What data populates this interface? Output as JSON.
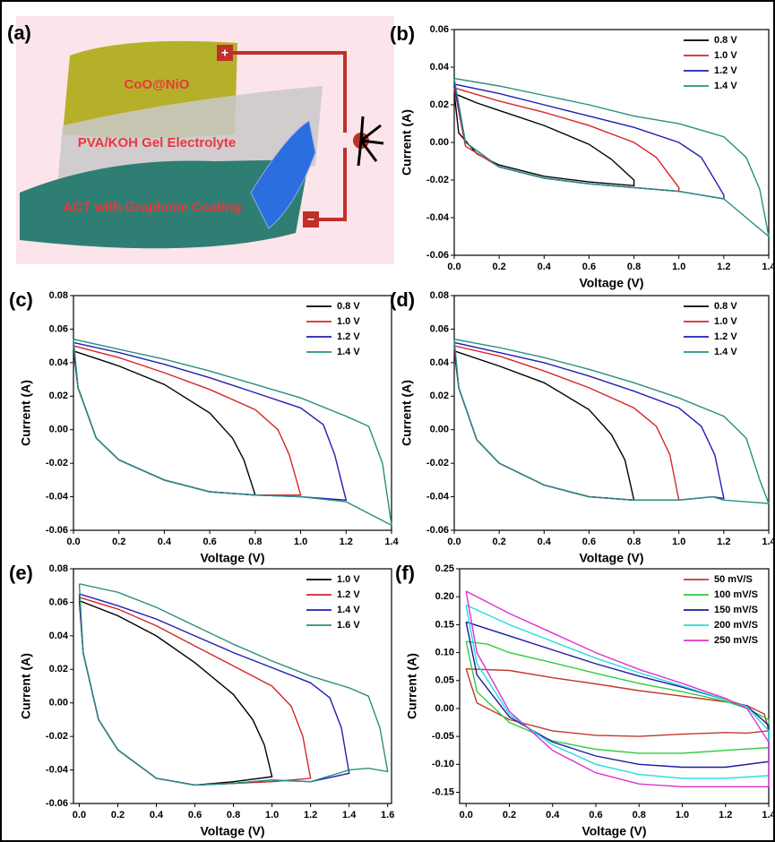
{
  "schematic": {
    "panel_label": "(a)",
    "top_layer": "CoO@NiO",
    "middle_layer": "PVA/KOH Gel Electrolyte",
    "bottom_layer": "ACT with Graphene Coating",
    "positive": "+",
    "negative": "−"
  },
  "chart_data": [
    {
      "type": "line",
      "panel_label": "(b)",
      "x_label": "Voltage (V)",
      "y_label": "Current (A)",
      "xlim": [
        0,
        1.4
      ],
      "ylim": [
        -0.06,
        0.06
      ],
      "xticks": [
        {
          "value": 0,
          "label": "0.0"
        },
        0.2,
        0.4,
        0.6,
        0.8,
        {
          "value": 1,
          "label": "1.0"
        },
        1.2,
        1.4
      ],
      "yticks": [
        -0.06,
        -0.04,
        -0.02,
        {
          "value": 0,
          "label": "0.00"
        },
        0.02,
        0.04,
        0.06
      ],
      "series": [
        {
          "name": "0.8 V",
          "color": "#000000",
          "x": [
            0,
            0.1,
            0.2,
            0.4,
            0.6,
            0.7,
            0.8,
            0.8,
            0.6,
            0.4,
            0.2,
            0.1,
            0.02,
            0
          ],
          "values": [
            0.026,
            0.021,
            0.017,
            0.009,
            -0.001,
            -0.009,
            -0.02,
            -0.023,
            -0.021,
            -0.018,
            -0.012,
            -0.006,
            0.005,
            0.026
          ]
        },
        {
          "name": "1.0 V",
          "color": "#d62728",
          "x": [
            0,
            0.2,
            0.4,
            0.6,
            0.8,
            0.9,
            1.0,
            1.0,
            0.8,
            0.6,
            0.4,
            0.2,
            0.05,
            0
          ],
          "values": [
            0.029,
            0.022,
            0.016,
            0.009,
            0.0,
            -0.008,
            -0.024,
            -0.026,
            -0.024,
            -0.022,
            -0.019,
            -0.013,
            -0.002,
            0.029
          ]
        },
        {
          "name": "1.2 V",
          "color": "#1f1fb4",
          "x": [
            0,
            0.2,
            0.4,
            0.6,
            0.8,
            1.0,
            1.1,
            1.2,
            1.2,
            1.0,
            0.8,
            0.6,
            0.4,
            0.2,
            0.05,
            0
          ],
          "values": [
            0.031,
            0.026,
            0.02,
            0.014,
            0.008,
            0.0,
            -0.008,
            -0.028,
            -0.03,
            -0.026,
            -0.024,
            -0.022,
            -0.019,
            -0.013,
            0.0,
            0.031
          ]
        },
        {
          "name": "1.4 V",
          "color": "#2a8f80",
          "x": [
            0,
            0.2,
            0.4,
            0.6,
            0.8,
            1.0,
            1.2,
            1.3,
            1.36,
            1.4,
            1.3,
            1.2,
            1.0,
            0.8,
            0.6,
            0.4,
            0.2,
            0.05,
            0
          ],
          "values": [
            0.034,
            0.03,
            0.025,
            0.02,
            0.014,
            0.01,
            0.003,
            -0.008,
            -0.025,
            -0.05,
            -0.04,
            -0.03,
            -0.026,
            -0.024,
            -0.022,
            -0.019,
            -0.013,
            0.0,
            0.034
          ]
        }
      ]
    },
    {
      "type": "line",
      "panel_label": "(c)",
      "x_label": "Voltage (V)",
      "y_label": "Current (A)",
      "xlim": [
        0,
        1.4
      ],
      "ylim": [
        -0.06,
        0.08
      ],
      "xticks": [
        {
          "value": 0,
          "label": "0.0"
        },
        0.2,
        0.4,
        0.6,
        0.8,
        {
          "value": 1,
          "label": "1.0"
        },
        1.2,
        1.4
      ],
      "yticks": [
        -0.06,
        -0.04,
        -0.02,
        {
          "value": 0,
          "label": "0.00"
        },
        0.02,
        0.04,
        0.06,
        0.08
      ],
      "series": [
        {
          "name": "0.8 V",
          "color": "#000000",
          "x": [
            0,
            0.2,
            0.4,
            0.6,
            0.7,
            0.75,
            0.8,
            0.6,
            0.4,
            0.2,
            0.1,
            0.02,
            0
          ],
          "values": [
            0.047,
            0.038,
            0.027,
            0.01,
            -0.005,
            -0.018,
            -0.039,
            -0.037,
            -0.03,
            -0.018,
            -0.005,
            0.025,
            0.047
          ]
        },
        {
          "name": "1.0 V",
          "color": "#d62728",
          "x": [
            0,
            0.2,
            0.4,
            0.6,
            0.8,
            0.9,
            0.95,
            1.0,
            0.8,
            0.6,
            0.4,
            0.2,
            0.1,
            0.02,
            0
          ],
          "values": [
            0.05,
            0.043,
            0.034,
            0.024,
            0.012,
            0.0,
            -0.015,
            -0.039,
            -0.039,
            -0.037,
            -0.03,
            -0.018,
            -0.005,
            0.025,
            0.05
          ]
        },
        {
          "name": "1.2 V",
          "color": "#1f1fb4",
          "x": [
            0,
            0.2,
            0.4,
            0.6,
            0.8,
            1.0,
            1.1,
            1.15,
            1.2,
            1.0,
            0.8,
            0.6,
            0.4,
            0.2,
            0.1,
            0.02,
            0
          ],
          "values": [
            0.052,
            0.046,
            0.039,
            0.031,
            0.022,
            0.013,
            0.003,
            -0.015,
            -0.042,
            -0.04,
            -0.039,
            -0.037,
            -0.03,
            -0.018,
            -0.005,
            0.025,
            0.052
          ]
        },
        {
          "name": "1.4 V",
          "color": "#2a8f80",
          "x": [
            0,
            0.2,
            0.4,
            0.6,
            0.8,
            1.0,
            1.2,
            1.3,
            1.36,
            1.4,
            1.3,
            1.2,
            1.0,
            0.8,
            0.6,
            0.4,
            0.2,
            0.1,
            0.02,
            0
          ],
          "values": [
            0.054,
            0.048,
            0.042,
            0.035,
            0.027,
            0.019,
            0.008,
            0.002,
            -0.02,
            -0.057,
            -0.05,
            -0.043,
            -0.04,
            -0.039,
            -0.037,
            -0.03,
            -0.018,
            -0.005,
            0.025,
            0.054
          ]
        }
      ]
    },
    {
      "type": "line",
      "panel_label": "(d)",
      "x_label": "Voltage (V)",
      "y_label": "Current (A)",
      "xlim": [
        0,
        1.4
      ],
      "ylim": [
        -0.06,
        0.08
      ],
      "xticks": [
        {
          "value": 0,
          "label": "0.0"
        },
        0.2,
        0.4,
        0.6,
        0.8,
        {
          "value": 1,
          "label": "1.0"
        },
        1.2,
        1.4
      ],
      "yticks": [
        -0.06,
        -0.04,
        -0.02,
        {
          "value": 0,
          "label": "0.00"
        },
        0.02,
        0.04,
        0.06,
        0.08
      ],
      "series": [
        {
          "name": "0.8 V",
          "color": "#000000",
          "x": [
            0,
            0.2,
            0.4,
            0.6,
            0.7,
            0.76,
            0.8,
            0.6,
            0.4,
            0.2,
            0.1,
            0.02,
            0
          ],
          "values": [
            0.047,
            0.038,
            0.028,
            0.012,
            -0.003,
            -0.018,
            -0.042,
            -0.04,
            -0.033,
            -0.02,
            -0.006,
            0.025,
            0.047
          ]
        },
        {
          "name": "1.0 V",
          "color": "#d62728",
          "x": [
            0,
            0.2,
            0.4,
            0.6,
            0.8,
            0.9,
            0.96,
            1.0,
            0.8,
            0.6,
            0.4,
            0.2,
            0.1,
            0.02,
            0
          ],
          "values": [
            0.05,
            0.044,
            0.035,
            0.025,
            0.013,
            0.002,
            -0.015,
            -0.042,
            -0.042,
            -0.04,
            -0.033,
            -0.02,
            -0.006,
            0.025,
            0.05
          ]
        },
        {
          "name": "1.2 V",
          "color": "#1f1fb4",
          "x": [
            0,
            0.2,
            0.4,
            0.6,
            0.8,
            1.0,
            1.1,
            1.16,
            1.2,
            1.15,
            1.0,
            0.8,
            0.6,
            0.4,
            0.2,
            0.1,
            0.02,
            0
          ],
          "values": [
            0.052,
            0.046,
            0.04,
            0.032,
            0.023,
            0.013,
            0.002,
            -0.015,
            -0.041,
            -0.04,
            -0.042,
            -0.042,
            -0.04,
            -0.033,
            -0.02,
            -0.006,
            0.025,
            0.052
          ]
        },
        {
          "name": "1.4 V",
          "color": "#2a8f80",
          "x": [
            0,
            0.2,
            0.4,
            0.6,
            0.8,
            1.0,
            1.2,
            1.3,
            1.36,
            1.4,
            1.3,
            1.2,
            1.15,
            1.0,
            0.8,
            0.6,
            0.4,
            0.2,
            0.1,
            0.02,
            0
          ],
          "values": [
            0.054,
            0.049,
            0.043,
            0.036,
            0.028,
            0.019,
            0.008,
            -0.005,
            -0.03,
            -0.044,
            -0.043,
            -0.042,
            -0.04,
            -0.042,
            -0.042,
            -0.04,
            -0.033,
            -0.02,
            -0.006,
            0.025,
            0.054
          ]
        }
      ]
    },
    {
      "type": "line",
      "panel_label": "(e)",
      "x_label": "Voltage (V)",
      "y_label": "Current (A)",
      "xlim": [
        -0.03,
        1.62
      ],
      "ylim": [
        -0.06,
        0.08
      ],
      "xticks": [
        {
          "value": 0,
          "label": "0.0"
        },
        0.2,
        0.4,
        0.6,
        0.8,
        {
          "value": 1,
          "label": "1.0"
        },
        1.2,
        1.4,
        1.6
      ],
      "yticks": [
        -0.06,
        -0.04,
        -0.02,
        {
          "value": 0,
          "label": "0.00"
        },
        0.02,
        0.04,
        0.06,
        0.08
      ],
      "series": [
        {
          "name": "1.0 V",
          "color": "#000000",
          "x": [
            0,
            0.2,
            0.4,
            0.6,
            0.8,
            0.9,
            0.96,
            1.0,
            0.8,
            0.6,
            0.4,
            0.2,
            0.1,
            0.02,
            0
          ],
          "values": [
            0.061,
            0.052,
            0.04,
            0.024,
            0.005,
            -0.01,
            -0.025,
            -0.044,
            -0.047,
            -0.049,
            -0.045,
            -0.028,
            -0.01,
            0.03,
            0.061
          ]
        },
        {
          "name": "1.2 V",
          "color": "#d62728",
          "x": [
            0,
            0.2,
            0.4,
            0.6,
            0.8,
            1.0,
            1.1,
            1.16,
            1.2,
            1.1,
            1.0,
            0.8,
            0.6,
            0.4,
            0.2,
            0.1,
            0.02,
            0
          ],
          "values": [
            0.063,
            0.056,
            0.046,
            0.034,
            0.022,
            0.01,
            -0.002,
            -0.02,
            -0.045,
            -0.046,
            -0.047,
            -0.048,
            -0.049,
            -0.045,
            -0.028,
            -0.01,
            0.03,
            0.063
          ]
        },
        {
          "name": "1.4 V",
          "color": "#1f1fb4",
          "x": [
            0,
            0.2,
            0.4,
            0.6,
            0.8,
            1.0,
            1.2,
            1.3,
            1.36,
            1.4,
            1.2,
            1.0,
            0.8,
            0.6,
            0.4,
            0.2,
            0.1,
            0.02,
            0
          ],
          "values": [
            0.065,
            0.058,
            0.05,
            0.04,
            0.03,
            0.021,
            0.012,
            0.003,
            -0.015,
            -0.042,
            -0.047,
            -0.046,
            -0.048,
            -0.049,
            -0.045,
            -0.028,
            -0.01,
            0.03,
            0.065
          ]
        },
        {
          "name": "1.6 V",
          "color": "#2a8f80",
          "x": [
            0,
            0.2,
            0.4,
            0.6,
            0.8,
            1.0,
            1.2,
            1.4,
            1.5,
            1.56,
            1.6,
            1.5,
            1.4,
            1.2,
            1.0,
            0.8,
            0.6,
            0.4,
            0.2,
            0.1,
            0.02,
            0
          ],
          "values": [
            0.071,
            0.066,
            0.057,
            0.046,
            0.035,
            0.025,
            0.016,
            0.009,
            0.004,
            -0.015,
            -0.041,
            -0.039,
            -0.04,
            -0.047,
            -0.046,
            -0.048,
            -0.049,
            -0.045,
            -0.028,
            -0.01,
            0.03,
            0.071
          ]
        }
      ]
    },
    {
      "type": "line",
      "panel_label": "(f)",
      "x_label": "Voltage (V)",
      "y_label": "Current (A)",
      "xlim": [
        -0.03,
        1.4
      ],
      "ylim": [
        -0.17,
        0.25
      ],
      "xticks": [
        {
          "value": 0,
          "label": "0.0"
        },
        0.2,
        0.4,
        0.6,
        0.8,
        {
          "value": 1,
          "label": "1.0"
        },
        1.2,
        1.4
      ],
      "yticks": [
        -0.15,
        {
          "value": -0.1,
          "label": "-0.10"
        },
        -0.05,
        {
          "value": 0,
          "label": "0.00"
        },
        0.05,
        {
          "value": 0.1,
          "label": "0.10"
        },
        0.15,
        {
          "value": 0.2,
          "label": "0.20"
        },
        0.25
      ],
      "series": [
        {
          "name": "50 mV/S",
          "color": "#c0392b",
          "x": [
            0,
            0.2,
            0.4,
            0.6,
            0.8,
            1.0,
            1.2,
            1.3,
            1.38,
            1.4,
            1.3,
            1.2,
            1.0,
            0.8,
            0.6,
            0.4,
            0.2,
            0.05,
            0
          ],
          "values": [
            0.071,
            0.068,
            0.055,
            0.044,
            0.032,
            0.022,
            0.012,
            0.005,
            -0.01,
            -0.04,
            -0.044,
            -0.043,
            -0.046,
            -0.05,
            -0.048,
            -0.04,
            -0.02,
            0.01,
            0.071
          ]
        },
        {
          "name": "100 mV/S",
          "color": "#2ecc40",
          "x": [
            0,
            0.1,
            0.2,
            0.4,
            0.6,
            0.8,
            1.0,
            1.2,
            1.3,
            1.4,
            1.4,
            1.2,
            1.0,
            0.8,
            0.6,
            0.4,
            0.2,
            0.05,
            0
          ],
          "values": [
            0.12,
            0.115,
            0.1,
            0.082,
            0.063,
            0.045,
            0.03,
            0.013,
            0.0,
            -0.02,
            -0.07,
            -0.075,
            -0.08,
            -0.08,
            -0.073,
            -0.058,
            -0.025,
            0.03,
            0.12
          ]
        },
        {
          "name": "150 mV/S",
          "color": "#1a1aa0",
          "x": [
            0,
            0.2,
            0.4,
            0.6,
            0.8,
            1.0,
            1.2,
            1.3,
            1.4,
            1.4,
            1.2,
            1.0,
            0.8,
            0.6,
            0.4,
            0.2,
            0.05,
            0
          ],
          "values": [
            0.155,
            0.13,
            0.105,
            0.08,
            0.058,
            0.038,
            0.016,
            0.004,
            -0.03,
            -0.095,
            -0.105,
            -0.105,
            -0.1,
            -0.085,
            -0.06,
            -0.015,
            0.06,
            0.155
          ]
        },
        {
          "name": "200 mV/S",
          "color": "#22dddd",
          "x": [
            0,
            0.2,
            0.4,
            0.6,
            0.8,
            1.0,
            1.2,
            1.3,
            1.4,
            1.4,
            1.2,
            1.0,
            0.8,
            0.6,
            0.4,
            0.2,
            0.05,
            0
          ],
          "values": [
            0.185,
            0.15,
            0.12,
            0.09,
            0.064,
            0.04,
            0.016,
            0.003,
            -0.04,
            -0.12,
            -0.125,
            -0.125,
            -0.118,
            -0.1,
            -0.065,
            -0.01,
            0.08,
            0.185
          ]
        },
        {
          "name": "250 mV/S",
          "color": "#dd33cc",
          "x": [
            0,
            0.2,
            0.4,
            0.6,
            0.8,
            1.0,
            1.2,
            1.3,
            1.4,
            1.4,
            1.2,
            1.0,
            0.8,
            0.6,
            0.4,
            0.2,
            0.05,
            0
          ],
          "values": [
            0.21,
            0.17,
            0.135,
            0.1,
            0.07,
            0.045,
            0.018,
            0.0,
            -0.06,
            -0.14,
            -0.14,
            -0.14,
            -0.135,
            -0.115,
            -0.075,
            -0.005,
            0.1,
            0.21
          ]
        }
      ]
    }
  ]
}
